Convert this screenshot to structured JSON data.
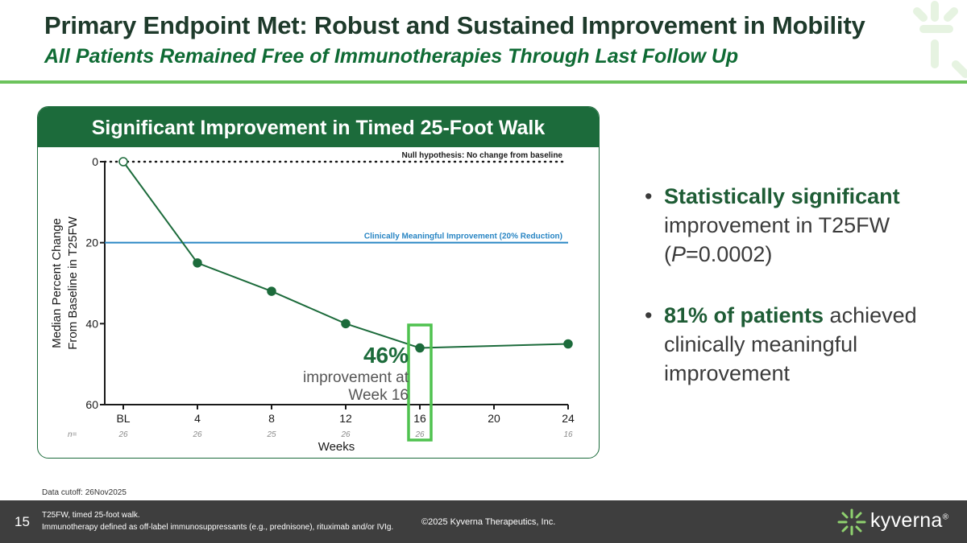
{
  "slide": {
    "title": "Primary Endpoint Met: Robust and Sustained Improvement in Mobility",
    "subtitle": "All Patients Remained Free of Immunotherapies Through Last Follow Up",
    "page_number": "15",
    "data_cutoff": "Data cutoff: 26Nov2025",
    "footnote_1": "T25FW, timed 25-foot walk.",
    "footnote_2": "Immunotherapy defined as off-label immunosuppressants (e.g., prednisone), rituximab and/or IVIg.",
    "copyright": "©2025 Kyverna Therapeutics, Inc.",
    "logo_text": "kyverna",
    "logo_mark": "®"
  },
  "panel": {
    "header": "Significant Improvement in Timed 25-Foot Walk"
  },
  "chart_data": {
    "type": "line",
    "title": "Significant Improvement in Timed 25-Foot Walk",
    "xlabel": "Weeks",
    "ylabel_line1": "Median Percent Change",
    "ylabel_line2": "From Baseline in T25FW",
    "xlim": [
      -1,
      24
    ],
    "ylim": [
      0,
      60
    ],
    "y_inverted": true,
    "x_ticks": [
      0,
      4,
      8,
      12,
      16,
      20,
      24
    ],
    "x_tick_labels": [
      "BL",
      "4",
      "8",
      "12",
      "16",
      "20",
      "24"
    ],
    "y_ticks": [
      0,
      20,
      40,
      60
    ],
    "n_label": "n=",
    "n_values": [
      {
        "x": 0,
        "n": "26"
      },
      {
        "x": 4,
        "n": "26"
      },
      {
        "x": 8,
        "n": "25"
      },
      {
        "x": 12,
        "n": "26"
      },
      {
        "x": 16,
        "n": "26"
      },
      {
        "x": 24,
        "n": "16"
      }
    ],
    "series": [
      {
        "x": [
          0,
          4,
          8,
          12,
          16,
          24
        ],
        "y": [
          0,
          25,
          32,
          40,
          46,
          45
        ],
        "color": "#1c6b3b",
        "baseline_marker": "open"
      }
    ],
    "reference_lines": [
      {
        "y": 0,
        "label": "Null hypothesis:  No change from baseline",
        "style": "dotted",
        "color": "#1a1a1a"
      },
      {
        "y": 20,
        "label": "Clinically Meaningful  Improvement  (20% Reduction)",
        "style": "solid",
        "color": "#2a86c4"
      }
    ],
    "highlight": {
      "x": 16,
      "color": "#4fc24f",
      "value_label": "46%",
      "caption_line1": "improvement at",
      "caption_line2": "Week 16"
    }
  },
  "bullets": [
    {
      "bold": "Statistically significant",
      "rest_1": " improvement in T25FW (",
      "italic": "P",
      "rest_2": "=0.0002)"
    },
    {
      "bold": "81% of patients",
      "rest_1": " achieved clinically meaningful improvement"
    }
  ],
  "colors": {
    "brand_dark_green": "#1c6b3b",
    "accent_green": "#6cc35c",
    "reference_blue": "#2a86c4",
    "footer_gray": "#3e3e3e"
  }
}
